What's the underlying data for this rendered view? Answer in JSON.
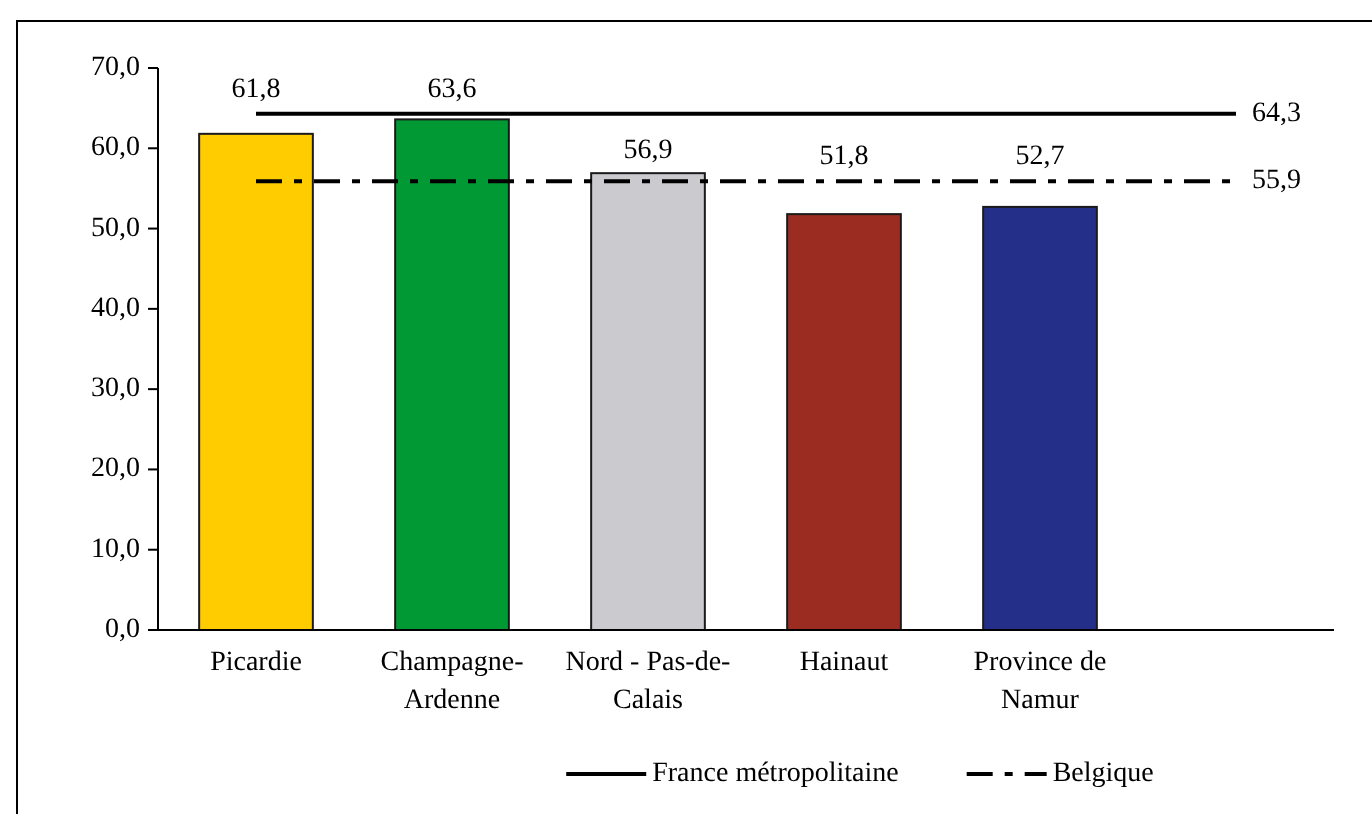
{
  "chart_data": {
    "type": "bar",
    "categories": [
      "Picardie",
      "Champagne-Ardenne",
      "Nord - Pas-de-Calais",
      "Hainaut",
      "Province de Namur",
      null
    ],
    "series": [
      {
        "colors": [
          "#ffcc00",
          "#009933",
          "#cbcbcf",
          "#9b2c22",
          "#232f88",
          null
        ],
        "values": [
          61.8,
          63.6,
          56.9,
          51.8,
          52.7,
          null
        ],
        "value_labels": [
          "61,8",
          "63,6",
          "56,9",
          "51,8",
          "52,7",
          null
        ]
      },
      {
        "type": "line",
        "name": "France métropolitaine",
        "color": "#000000",
        "line_style": "solid",
        "values": [
          64.3,
          64.3,
          64.3,
          64.3,
          64.3,
          64.3
        ],
        "value_labels": [
          null,
          null,
          null,
          null,
          null,
          "64,3"
        ]
      },
      {
        "type": "line",
        "name": "Belgique",
        "color": "#000000",
        "line_style": "dashed",
        "values": [
          55.9,
          55.9,
          55.9,
          55.9,
          55.9,
          55.9
        ],
        "value_labels": [
          null,
          null,
          null,
          null,
          null,
          "55,9"
        ]
      }
    ],
    "ylim": [
      0,
      70
    ],
    "yticks": [
      {
        "value": 0,
        "label": "0,0"
      },
      {
        "value": 10,
        "label": "10,0"
      },
      {
        "value": 20,
        "label": "20,0"
      },
      {
        "value": 30,
        "label": "30,0"
      },
      {
        "value": 40,
        "label": "40,0"
      },
      {
        "value": 50,
        "label": "50,0"
      },
      {
        "value": 60,
        "label": "60,0"
      },
      {
        "value": 70,
        "label": "70,0"
      }
    ],
    "legend": "bottom"
  }
}
